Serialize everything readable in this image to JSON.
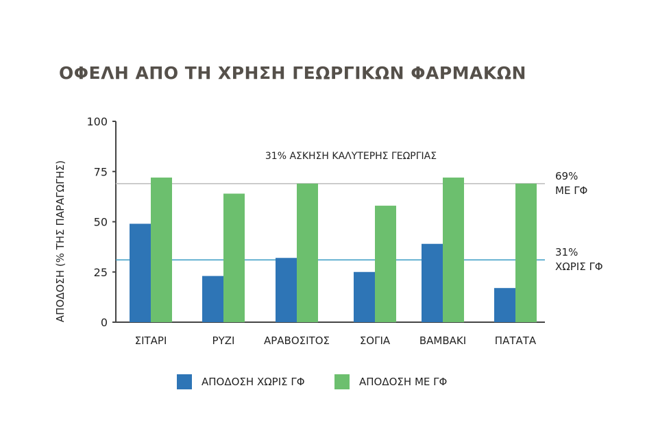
{
  "title": "ΟΦΕΛΗ ΑΠΟ ΤΗ ΧΡΗΣΗ ΓΕΩΡΓΙΚΩΝ ΦΑΡΜΑΚΩΝ",
  "chart_data": {
    "type": "bar",
    "ylabel": "ΑΠΟΔΟΣΗ (% ΤΗΣ ΠΑΡΑΓΩΓΗΣ)",
    "ylim": [
      0,
      100
    ],
    "yticks": [
      "0",
      "25",
      "50",
      "75",
      "100"
    ],
    "categories": [
      "ΣΙΤΑΡΙ",
      "ΡΥΖΙ",
      "ΑΡΑΒΟΣΙΤΟΣ",
      "ΣΟΓΙΑ",
      "ΒΑΜΒΑΚΙ",
      "ΠΑΤΑΤΑ"
    ],
    "series": [
      {
        "name": "ΑΠΟΔΟΣΗ ΧΩΡΙΣ ΓΦ",
        "color": "#2e75b6",
        "values": [
          49,
          23,
          32,
          25,
          39,
          17
        ]
      },
      {
        "name": "ΑΠΟΔΟΣΗ ΜΕ ΓΦ",
        "color": "#6cbf6e",
        "values": [
          72,
          64,
          69,
          58,
          72,
          69
        ]
      }
    ],
    "reference_lines": [
      {
        "value": 69,
        "color": "#bbbbbb",
        "label_lines": [
          "69%",
          "ΜΕ ΓΦ"
        ]
      },
      {
        "value": 31,
        "color": "#3a9cc4",
        "label_lines": [
          "31%",
          "ΧΩΡΙΣ ΓΦ"
        ]
      }
    ],
    "annotation": "31% ΑΣΚΗΣΗ ΚΑΛΥΤΕΡΗΣ ΓΕΩΡΓΙΑΣ",
    "legend_position": "bottom",
    "grid": false
  }
}
